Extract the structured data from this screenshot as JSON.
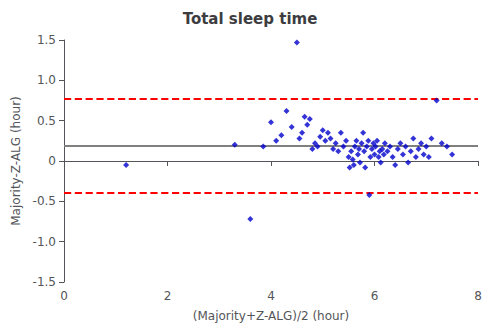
{
  "chart_data": {
    "type": "scatter",
    "title": "Total sleep time",
    "xlabel": "(Majority+Z-ALG)/2 (hour)",
    "ylabel": "Majority-Z-ALG (hour)",
    "xlim": [
      0,
      8
    ],
    "ylim": [
      -1.5,
      1.5
    ],
    "xticks": [
      0,
      2,
      4,
      6,
      8
    ],
    "yticks": [
      -1.5,
      {
        "value": -1.0,
        "label": "-1.0"
      },
      -0.5,
      0,
      0.5,
      {
        "value": 1.0,
        "label": "1.0"
      },
      1.5
    ],
    "grid": false,
    "color": "#0000CC",
    "marker": "diamond",
    "hlines": [
      {
        "value": 0.193,
        "color": "#808080",
        "line_style": "solid"
      },
      {
        "value": 0.773,
        "color": "#FF0000",
        "line_style": "dashed"
      },
      {
        "value": -0.387,
        "color": "#FF0000",
        "line_style": "dashed"
      }
    ],
    "x": [
      1.2,
      3.3,
      3.6,
      3.85,
      4.0,
      4.1,
      4.2,
      4.3,
      4.4,
      4.5,
      4.55,
      4.6,
      4.65,
      4.7,
      4.75,
      4.8,
      4.85,
      4.9,
      4.95,
      5.0,
      5.05,
      5.1,
      5.15,
      5.2,
      5.25,
      5.3,
      5.35,
      5.4,
      5.45,
      5.5,
      5.52,
      5.55,
      5.58,
      5.6,
      5.62,
      5.65,
      5.68,
      5.7,
      5.72,
      5.75,
      5.78,
      5.8,
      5.82,
      5.85,
      5.88,
      5.9,
      5.92,
      5.95,
      5.98,
      6.0,
      6.02,
      6.05,
      6.08,
      6.1,
      6.12,
      6.15,
      6.18,
      6.2,
      6.25,
      6.3,
      6.35,
      6.4,
      6.45,
      6.5,
      6.55,
      6.6,
      6.65,
      6.7,
      6.75,
      6.8,
      6.85,
      6.9,
      6.95,
      7.0,
      7.05,
      7.1,
      7.2,
      7.3,
      7.4,
      7.5
    ],
    "values": [
      -0.05,
      0.2,
      -0.72,
      0.18,
      0.48,
      0.25,
      0.32,
      0.62,
      0.42,
      1.47,
      0.28,
      0.35,
      0.55,
      0.45,
      0.52,
      0.15,
      0.22,
      0.18,
      0.3,
      0.38,
      0.25,
      0.35,
      0.28,
      0.15,
      0.22,
      0.12,
      0.35,
      0.18,
      0.25,
      0.05,
      -0.08,
      0.12,
      0.02,
      -0.05,
      0.18,
      0.25,
      0.08,
      0.15,
      -0.02,
      0.22,
      0.35,
      0.12,
      -0.08,
      0.18,
      0.25,
      -0.42,
      0.05,
      0.15,
      0.22,
      0.08,
      0.18,
      0.25,
      0.05,
      0.12,
      -0.02,
      0.15,
      0.08,
      0.22,
      0.12,
      0.18,
      0.05,
      -0.05,
      0.15,
      0.22,
      0.08,
      0.18,
      -0.02,
      0.12,
      0.28,
      0.05,
      0.15,
      0.22,
      0.08,
      0.18,
      0.05,
      0.28,
      0.75,
      0.22,
      0.18,
      0.08
    ]
  }
}
